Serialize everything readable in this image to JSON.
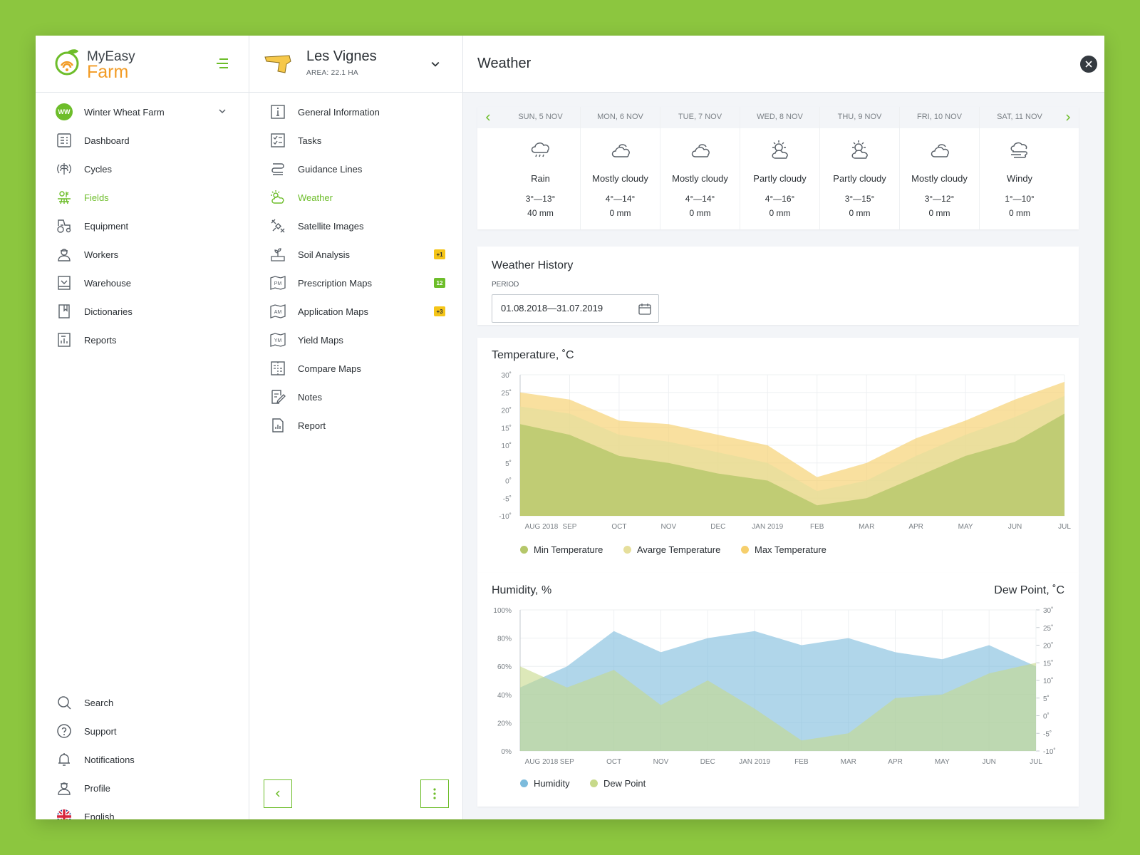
{
  "app": {
    "brand_line1": "MyEasy",
    "brand_line2": "Farm"
  },
  "sidebar": {
    "farm_badge": "WW",
    "farm_name": "Winter Wheat Farm",
    "items": [
      {
        "label": "Dashboard",
        "icon": "dashboard-icon"
      },
      {
        "label": "Cycles",
        "icon": "cycles-icon"
      },
      {
        "label": "Fields",
        "icon": "fields-icon",
        "active": true
      },
      {
        "label": "Equipment",
        "icon": "tractor-icon"
      },
      {
        "label": "Workers",
        "icon": "worker-icon"
      },
      {
        "label": "Warehouse",
        "icon": "warehouse-icon"
      },
      {
        "label": "Dictionaries",
        "icon": "dictionary-icon"
      },
      {
        "label": "Reports",
        "icon": "reports-icon"
      }
    ],
    "bottom": [
      {
        "label": "Search",
        "icon": "search-icon"
      },
      {
        "label": "Support",
        "icon": "support-icon"
      },
      {
        "label": "Notifications",
        "icon": "bell-icon"
      },
      {
        "label": "Profile",
        "icon": "profile-icon"
      },
      {
        "label": "English",
        "icon": "uk-flag-icon"
      }
    ]
  },
  "field": {
    "name": "Les Vignes",
    "area": "AREA: 22.1 HA",
    "menu": [
      {
        "label": "General Information",
        "icon": "info-icon"
      },
      {
        "label": "Tasks",
        "icon": "tasks-icon"
      },
      {
        "label": "Guidance Lines",
        "icon": "guidance-icon"
      },
      {
        "label": "Weather",
        "icon": "weather-icon",
        "active": true
      },
      {
        "label": "Satellite Images",
        "icon": "satellite-icon"
      },
      {
        "label": "Soil Analysis",
        "icon": "soil-icon",
        "badge": "+1",
        "badge_color": "#f5c518"
      },
      {
        "label": "Prescription Maps",
        "icon": "pm-map-icon",
        "badge": "12",
        "badge_color": "#6dbd2a"
      },
      {
        "label": "Application Maps",
        "icon": "am-map-icon",
        "badge": "+3",
        "badge_color": "#f5c518"
      },
      {
        "label": "Yield Maps",
        "icon": "ym-map-icon"
      },
      {
        "label": "Compare Maps",
        "icon": "compare-icon"
      },
      {
        "label": "Notes",
        "icon": "notes-icon"
      },
      {
        "label": "Report",
        "icon": "report-icon"
      }
    ]
  },
  "weather": {
    "title": "Weather",
    "forecast": [
      {
        "day": "SUN, 5 NOV",
        "cond": "Rain",
        "icon": "rain-icon",
        "temp": "3°—13°",
        "precip": "40 mm"
      },
      {
        "day": "MON, 6 NOV",
        "cond": "Mostly cloudy",
        "icon": "cloud-icon",
        "temp": "4°—14°",
        "precip": "0 mm"
      },
      {
        "day": "TUE, 7 NOV",
        "cond": "Mostly cloudy",
        "icon": "cloud-icon",
        "temp": "4°—14°",
        "precip": "0 mm"
      },
      {
        "day": "WED, 8 NOV",
        "cond": "Partly cloudy",
        "icon": "partly-cloudy-icon",
        "temp": "4°—16°",
        "precip": "0 mm"
      },
      {
        "day": "THU, 9 NOV",
        "cond": "Partly cloudy",
        "icon": "partly-cloudy-icon",
        "temp": "3°—15°",
        "precip": "0 mm"
      },
      {
        "day": "FRI, 10 NOV",
        "cond": "Mostly cloudy",
        "icon": "cloud-icon",
        "temp": "3°—12°",
        "precip": "0 mm"
      },
      {
        "day": "SAT, 11 NOV",
        "cond": "Windy",
        "icon": "wind-icon",
        "temp": "1°—10°",
        "precip": "0 mm"
      }
    ],
    "history_title": "Weather History",
    "period_label": "PERIOD",
    "period_value": "01.08.2018—31.07.2019"
  },
  "colors": {
    "accent": "#6dbd2a",
    "min": "#b5c76a",
    "avg": "#e6df9c",
    "max": "#f6cf6c",
    "humidity": "#7cbbdc",
    "dew": "#c7d98a"
  },
  "chart_data": [
    {
      "type": "area",
      "title": "Temperature, ˚C",
      "x": [
        "AUG 2018",
        "SEP",
        "OCT",
        "NOV",
        "DEC",
        "JAN 2019",
        "FEB",
        "MAR",
        "APR",
        "MAY",
        "JUN",
        "JUL"
      ],
      "y_ticks": [
        "30˚",
        "25˚",
        "20˚",
        "15˚",
        "10˚",
        "5˚",
        "0˚",
        "-5˚",
        "-10˚"
      ],
      "ylim": [
        -10,
        30
      ],
      "series": [
        {
          "name": "Max Temperature",
          "values": [
            25,
            23,
            17,
            16,
            13,
            10,
            1,
            5,
            12,
            17,
            23,
            28
          ]
        },
        {
          "name": "Avarge Temperature",
          "values": [
            21,
            19,
            13,
            11,
            8,
            5,
            -3,
            0,
            7,
            13,
            18,
            24
          ]
        },
        {
          "name": "Min Temperature",
          "values": [
            16,
            13,
            7,
            5,
            2,
            0,
            -7,
            -5,
            1,
            7,
            11,
            19
          ]
        }
      ]
    },
    {
      "type": "area",
      "title": "Humidity, %",
      "title_right": "Dew Point, ˚C",
      "x": [
        "AUG 2018",
        "SEP",
        "OCT",
        "NOV",
        "DEC",
        "JAN 2019",
        "FEB",
        "MAR",
        "APR",
        "MAY",
        "JUN",
        "JUL"
      ],
      "y_ticks": [
        "100%",
        "80%",
        "60%",
        "40%",
        "20%",
        "0%"
      ],
      "y2_ticks": [
        "30˚",
        "25˚",
        "20˚",
        "15˚",
        "10˚",
        "5˚",
        "0˚",
        "-5˚",
        "-10˚"
      ],
      "ylim": [
        0,
        100
      ],
      "y2lim": [
        -10,
        30
      ],
      "series": [
        {
          "name": "Humidity",
          "axis": "left",
          "values": [
            45,
            60,
            85,
            70,
            80,
            85,
            75,
            80,
            70,
            65,
            75,
            60
          ]
        },
        {
          "name": "Dew Point",
          "axis": "right",
          "values": [
            14,
            8,
            13,
            3,
            10,
            2,
            -7,
            -5,
            5,
            6,
            12,
            15
          ]
        }
      ]
    }
  ]
}
